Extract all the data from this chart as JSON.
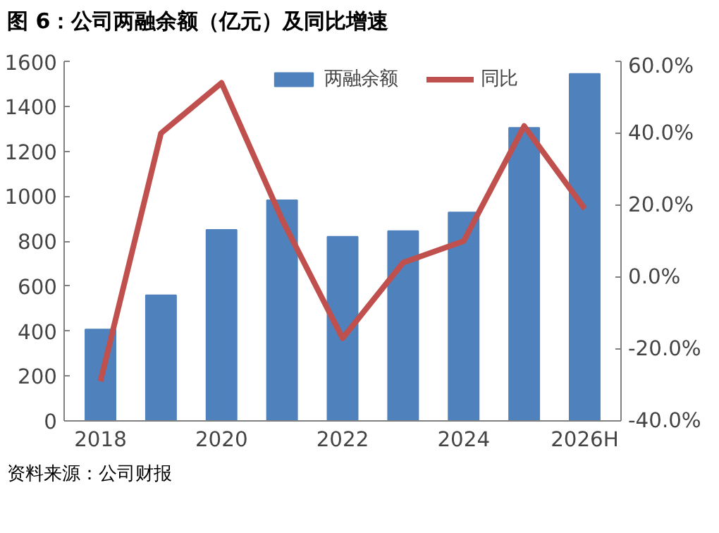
{
  "chart_data": {
    "type": "bar",
    "title": "图 6：公司两融余额（亿元）及同比增速",
    "categories": [
      "2018",
      null,
      "2020",
      null,
      "2022",
      null,
      "2024",
      null,
      "2026H"
    ],
    "series": [
      {
        "name": "两融余额",
        "color": "#4f81bd",
        "values": [
          407,
          559,
          850,
          982,
          820,
          845,
          928,
          1304,
          1544
        ]
      },
      {
        "name": "同比",
        "type": "line",
        "axis": "y2",
        "color": "#c0504d",
        "values": [
          -29,
          40,
          54,
          16,
          -17,
          4,
          10,
          42,
          19
        ]
      }
    ],
    "ylim": [
      0,
      1600
    ],
    "yticks": [
      0,
      200,
      400,
      600,
      800,
      1000,
      1200,
      1400,
      1600
    ],
    "y2lim": [
      -40,
      60
    ],
    "y2ticks": [
      {
        "value": -40,
        "label": "-40.0%"
      },
      {
        "value": -20,
        "label": "-20.0%"
      },
      {
        "value": 0,
        "label": "0.0%"
      },
      {
        "value": 20,
        "label": "20.0%"
      },
      {
        "value": 40,
        "label": "40.0%"
      },
      {
        "value": 60,
        "label": "60.0%"
      }
    ],
    "legend": "top",
    "grid": false,
    "marker": "none",
    "line_style": "solid",
    "annotations": [
      "资料来源：公司财报"
    ]
  }
}
